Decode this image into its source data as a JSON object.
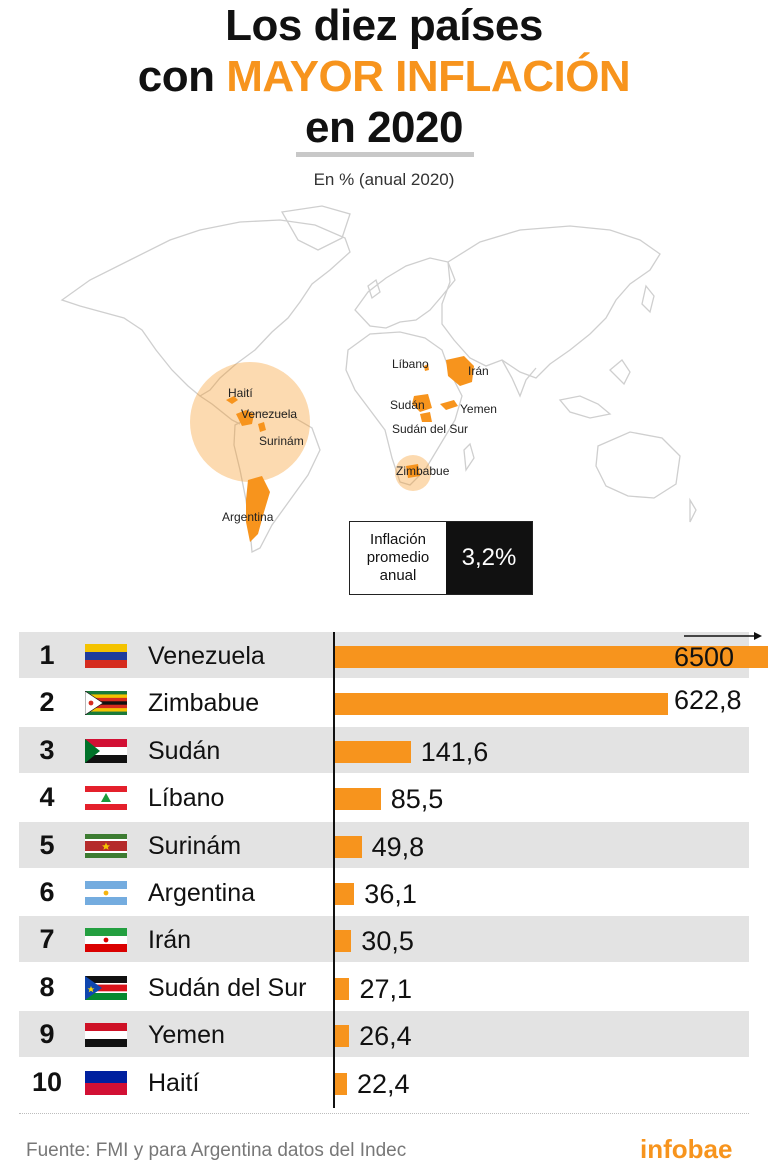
{
  "header": {
    "title_line1": "Los diez países",
    "title_line2_pre": "con ",
    "title_line2_accent": "MAYOR INFLACIÓN",
    "title_line3": "en 2020",
    "subtitle": "En % (anual 2020)"
  },
  "map": {
    "labels": {
      "haiti": "Haití",
      "venezuela": "Venezuela",
      "surinam": "Surinám",
      "argentina": "Argentina",
      "libano": "Líbano",
      "iran": "Irán",
      "sudan": "Sudán",
      "yemen": "Yemen",
      "sudan_sur": "Sudán del Sur",
      "zimbabue": "Zimbabue"
    }
  },
  "average_box": {
    "label_line1": "Inflación",
    "label_line2": "promedio",
    "label_line3": "anual",
    "value": "3,2%"
  },
  "colors": {
    "accent": "#f7941d",
    "shade": "#e3e3e3",
    "dark": "#111111"
  },
  "chart_data": {
    "type": "bar",
    "orientation": "horizontal",
    "categories": [
      "Venezuela",
      "Zimbabue",
      "Sudán",
      "Líbano",
      "Surinám",
      "Argentina",
      "Irán",
      "Sudán del Sur",
      "Yemen",
      "Haití"
    ],
    "ranks": [
      "1",
      "2",
      "3",
      "4",
      "5",
      "6",
      "7",
      "8",
      "9",
      "10"
    ],
    "values": [
      6500,
      622.8,
      141.6,
      85.5,
      49.8,
      36.1,
      30.5,
      27.1,
      26.4,
      22.4
    ],
    "value_labels": [
      "6500",
      "622,8",
      "141,6",
      "85,5",
      "49,8",
      "36,1",
      "30,5",
      "27,1",
      "26,4",
      "22,4"
    ],
    "flags": [
      "venezuela-flag",
      "zimbabwe-flag",
      "sudan-flag",
      "lebanon-flag",
      "suriname-flag",
      "argentina-flag",
      "iran-flag",
      "south-sudan-flag",
      "yemen-flag",
      "haiti-flag"
    ],
    "axis_break": "arrow indicates Venezuela bar exceeds scale"
  },
  "footer": {
    "source": "Fuente: FMI y para Argentina datos del Indec",
    "brand": "infobae"
  }
}
